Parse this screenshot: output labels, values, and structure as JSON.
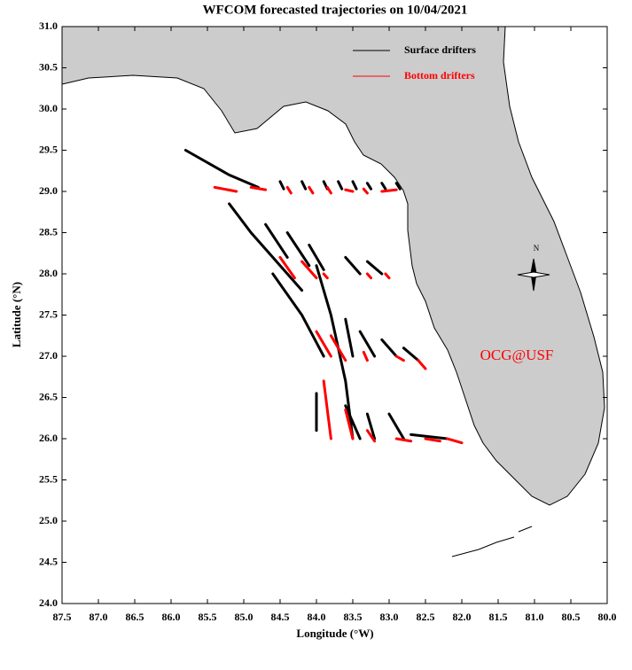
{
  "chart_data": {
    "type": "trajectory",
    "title": "WFCOM forecasted trajectories on 10/04/2021",
    "x_label": "Longitude (°W)",
    "y_label": "Latitude (°N)",
    "xlim": [
      87.5,
      80.0
    ],
    "ylim": [
      24.0,
      31.0
    ],
    "xticks": [
      87.5,
      {
        "value": 87,
        "label": "87.0"
      },
      86.5,
      {
        "value": 86,
        "label": "86.0"
      },
      85.5,
      {
        "value": 85,
        "label": "85.0"
      },
      84.5,
      {
        "value": 84,
        "label": "84.0"
      },
      83.5,
      {
        "value": 83,
        "label": "83.0"
      },
      82.5,
      {
        "value": 82,
        "label": "82.0"
      },
      81.5,
      {
        "value": 81,
        "label": "81.0"
      },
      80.5,
      {
        "value": 80,
        "label": "80.0"
      }
    ],
    "yticks": [
      {
        "value": 24,
        "label": "24.0"
      },
      24.5,
      {
        "value": 25,
        "label": "25.0"
      },
      25.5,
      {
        "value": 26,
        "label": "26.0"
      },
      26.5,
      {
        "value": 27,
        "label": "27.0"
      },
      27.5,
      {
        "value": 28,
        "label": "28.0"
      },
      28.5,
      {
        "value": 29,
        "label": "29.0"
      },
      29.5,
      {
        "value": 30,
        "label": "30.0"
      },
      30.5,
      {
        "value": 31,
        "label": "31.0"
      }
    ],
    "legend": "upper right",
    "annotations": [
      "OCG@USF",
      "N"
    ],
    "series": [
      {
        "name": "Surface drifters",
        "color": "#000000",
        "tracks": [
          {
            "x": [
              85.8,
              85.2,
              84.8
            ],
            "y": [
              29.5,
              29.2,
              29.05
            ]
          },
          {
            "x": [
              84.5,
              84.45
            ],
            "y": [
              29.12,
              29.03
            ]
          },
          {
            "x": [
              84.2,
              84.15
            ],
            "y": [
              29.12,
              29.03
            ]
          },
          {
            "x": [
              83.9,
              83.85
            ],
            "y": [
              29.12,
              29.03
            ]
          },
          {
            "x": [
              83.7,
              83.65
            ],
            "y": [
              29.12,
              29.03
            ]
          },
          {
            "x": [
              83.5,
              83.45
            ],
            "y": [
              29.12,
              29.03
            ]
          },
          {
            "x": [
              83.3,
              83.25
            ],
            "y": [
              29.1,
              29.03
            ]
          },
          {
            "x": [
              83.1,
              83.05
            ],
            "y": [
              29.1,
              29.03
            ]
          },
          {
            "x": [
              82.9,
              82.85
            ],
            "y": [
              29.1,
              29.03
            ]
          },
          {
            "x": [
              85.2,
              84.9,
              84.6,
              84.2
            ],
            "y": [
              28.85,
              28.5,
              28.2,
              27.8
            ]
          },
          {
            "x": [
              84.7,
              84.4
            ],
            "y": [
              28.6,
              28.2
            ]
          },
          {
            "x": [
              84.4,
              84.1
            ],
            "y": [
              28.5,
              28.1
            ]
          },
          {
            "x": [
              84.1,
              83.9
            ],
            "y": [
              28.35,
              28.05
            ]
          },
          {
            "x": [
              83.6,
              83.4
            ],
            "y": [
              28.2,
              28.0
            ]
          },
          {
            "x": [
              83.3,
              83.1
            ],
            "y": [
              28.15,
              28.0
            ]
          },
          {
            "x": [
              84.6,
              84.2,
              83.9
            ],
            "y": [
              28.0,
              27.5,
              27.0
            ]
          },
          {
            "x": [
              84.0,
              83.8,
              83.6,
              83.5
            ],
            "y": [
              28.1,
              27.5,
              26.7,
              26.0
            ]
          },
          {
            "x": [
              83.6,
              83.5
            ],
            "y": [
              27.45,
              27.0
            ]
          },
          {
            "x": [
              83.4,
              83.2
            ],
            "y": [
              27.3,
              27.0
            ]
          },
          {
            "x": [
              83.1,
              82.9
            ],
            "y": [
              27.2,
              27.0
            ]
          },
          {
            "x": [
              82.8,
              82.6
            ],
            "y": [
              27.1,
              26.95
            ]
          },
          {
            "x": [
              84.0,
              84.0
            ],
            "y": [
              26.55,
              26.1
            ]
          },
          {
            "x": [
              83.6,
              83.4
            ],
            "y": [
              26.4,
              26.0
            ]
          },
          {
            "x": [
              83.3,
              83.2
            ],
            "y": [
              26.3,
              26.0
            ]
          },
          {
            "x": [
              83.0,
              82.8
            ],
            "y": [
              26.3,
              26.0
            ]
          },
          {
            "x": [
              82.7,
              82.2
            ],
            "y": [
              26.05,
              26.0
            ]
          }
        ]
      },
      {
        "name": "Bottom drifters",
        "color": "#ff0000",
        "tracks": [
          {
            "x": [
              85.4,
              85.1
            ],
            "y": [
              29.05,
              29.0
            ]
          },
          {
            "x": [
              84.9,
              84.7
            ],
            "y": [
              29.05,
              29.02
            ]
          },
          {
            "x": [
              84.4,
              84.35
            ],
            "y": [
              29.05,
              28.98
            ]
          },
          {
            "x": [
              84.1,
              84.05
            ],
            "y": [
              29.05,
              28.98
            ]
          },
          {
            "x": [
              83.85,
              83.8
            ],
            "y": [
              29.05,
              28.98
            ]
          },
          {
            "x": [
              83.6,
              83.5
            ],
            "y": [
              29.02,
              29.0
            ]
          },
          {
            "x": [
              83.35,
              83.3
            ],
            "y": [
              29.03,
              28.98
            ]
          },
          {
            "x": [
              83.1,
              82.9
            ],
            "y": [
              29.0,
              29.02
            ]
          },
          {
            "x": [
              84.5,
              84.3
            ],
            "y": [
              28.2,
              27.95
            ]
          },
          {
            "x": [
              84.2,
              84.0
            ],
            "y": [
              28.15,
              27.95
            ]
          },
          {
            "x": [
              83.9,
              83.85
            ],
            "y": [
              28.0,
              27.95
            ]
          },
          {
            "x": [
              83.3,
              83.25
            ],
            "y": [
              28.0,
              27.95
            ]
          },
          {
            "x": [
              83.05,
              83.0
            ],
            "y": [
              28.0,
              27.95
            ]
          },
          {
            "x": [
              84.0,
              83.8
            ],
            "y": [
              27.3,
              27.0
            ]
          },
          {
            "x": [
              83.8,
              83.6
            ],
            "y": [
              27.25,
              26.95
            ]
          },
          {
            "x": [
              83.35,
              83.3
            ],
            "y": [
              27.05,
              26.95
            ]
          },
          {
            "x": [
              82.9,
              82.8
            ],
            "y": [
              27.0,
              26.95
            ]
          },
          {
            "x": [
              82.6,
              82.5
            ],
            "y": [
              26.95,
              26.85
            ]
          },
          {
            "x": [
              83.9,
              83.8
            ],
            "y": [
              26.7,
              26.0
            ]
          },
          {
            "x": [
              83.6,
              83.5
            ],
            "y": [
              26.35,
              26.0
            ]
          },
          {
            "x": [
              83.3,
              83.2
            ],
            "y": [
              26.1,
              25.97
            ]
          },
          {
            "x": [
              82.9,
              82.7
            ],
            "y": [
              26.0,
              25.97
            ]
          },
          {
            "x": [
              82.5,
              82.3
            ],
            "y": [
              26.0,
              25.97
            ]
          },
          {
            "x": [
              82.2,
              82.0
            ],
            "y": [
              26.0,
              25.95
            ]
          }
        ]
      }
    ]
  }
}
